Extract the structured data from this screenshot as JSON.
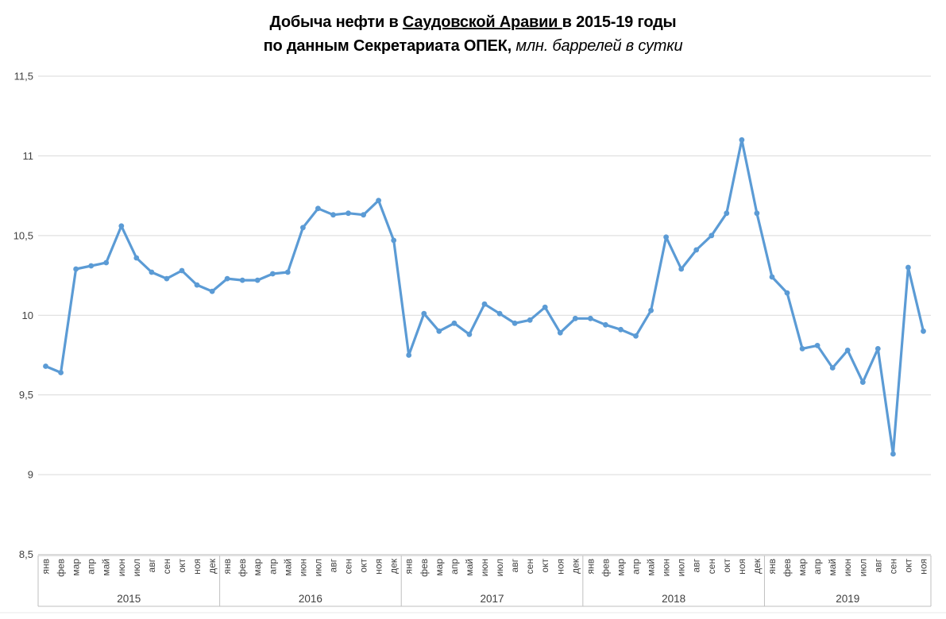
{
  "title": {
    "line1_prefix": "Добыча нефти в ",
    "line1_underlined": "Саудовской Аравии ",
    "line1_suffix": "в 2015-19 годы",
    "line2_bold": "по данным Секретариата ОПЕК,",
    "line2_italic": " млн. баррелей в сутки"
  },
  "colors": {
    "line": "#5B9BD5",
    "marker": "#5B9BD5",
    "grid": "#D9D9D9",
    "axis": "#BFBFBF",
    "axis_text": "#404040",
    "title_text": "#000000",
    "faint_bottom_line": "#E8E8E8"
  },
  "chart_data": {
    "type": "line",
    "title": "Добыча нефти в Саудовской Аравии в 2015-19 годы по данным Секретариата ОПЕК, млн. баррелей в сутки",
    "ylabel": "млн. баррелей в сутки",
    "ylim": [
      8.5,
      11.5
    ],
    "grid": true,
    "legend": "none",
    "y_ticks": [
      "11,5",
      "11",
      "10,5",
      "10",
      "9,5",
      "9",
      "8,5"
    ],
    "y_tick_values": [
      11.5,
      11.0,
      10.5,
      10.0,
      9.5,
      9.0,
      8.5
    ],
    "month_labels": [
      "янв",
      "фев",
      "мар",
      "апр",
      "май",
      "июн",
      "июл",
      "авг",
      "сен",
      "окт",
      "ноя",
      "дек"
    ],
    "series_name": "Добыча нефти, млн. баррелей в сутки",
    "years": [
      {
        "label": "2015",
        "values": [
          9.68,
          9.64,
          10.29,
          10.31,
          10.33,
          10.56,
          10.36,
          10.27,
          10.23,
          10.28,
          10.19,
          10.15
        ]
      },
      {
        "label": "2016",
        "values": [
          10.23,
          10.22,
          10.22,
          10.26,
          10.27,
          10.55,
          10.67,
          10.63,
          10.64,
          10.63,
          10.72,
          10.47
        ]
      },
      {
        "label": "2017",
        "values": [
          9.75,
          10.01,
          9.9,
          9.95,
          9.88,
          10.07,
          10.01,
          9.95,
          9.97,
          10.05,
          9.89,
          9.98
        ]
      },
      {
        "label": "2018",
        "values": [
          9.98,
          9.94,
          9.91,
          9.87,
          10.03,
          10.49,
          10.29,
          10.41,
          10.5,
          10.64,
          11.1,
          10.64
        ]
      },
      {
        "label": "2019",
        "values": [
          10.24,
          10.14,
          9.79,
          9.81,
          9.67,
          9.78,
          9.58,
          9.79,
          9.13,
          10.3,
          9.9
        ]
      }
    ]
  }
}
